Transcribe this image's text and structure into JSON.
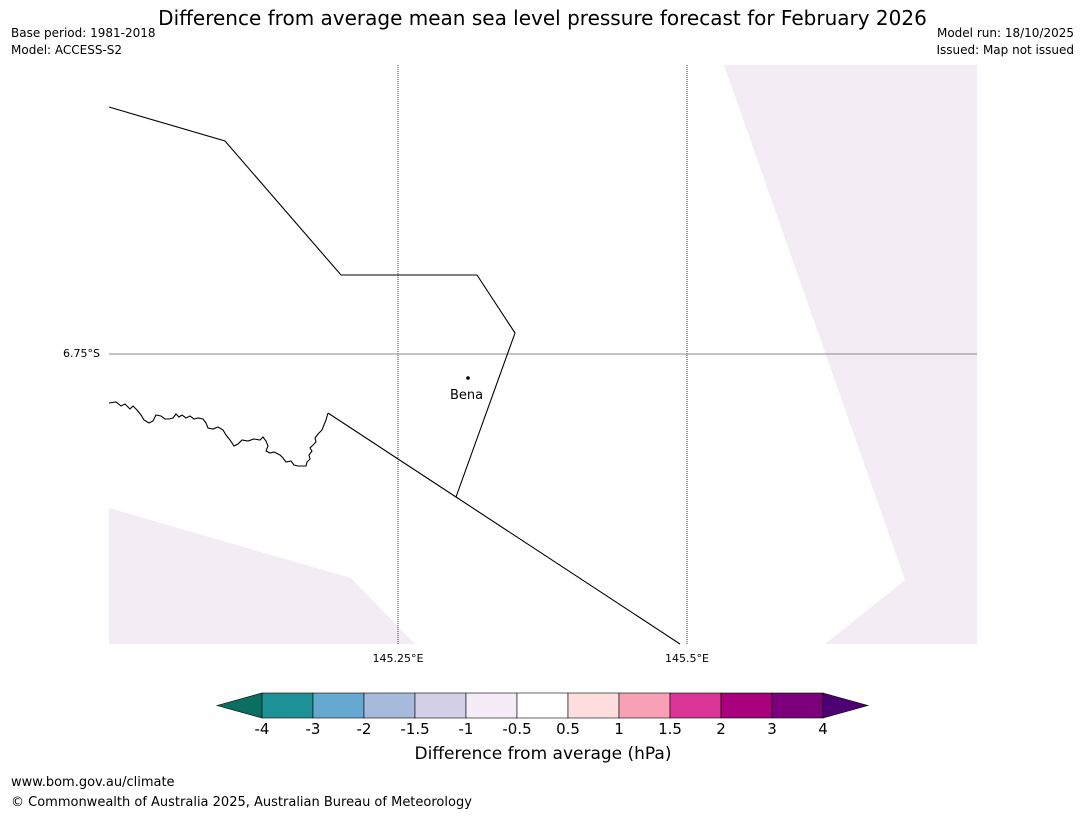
{
  "header": {
    "base_period": "Base period: 1981-2018",
    "model": "Model: ACCESS-S2",
    "title": "Difference from average mean sea level pressure forecast for February 2026",
    "model_run": "Model run: 18/10/2025",
    "issued": "Issued: Map not issued"
  },
  "map": {
    "lat_label": "6.75°S",
    "lon_labels": [
      "145.25°E",
      "145.5°E"
    ],
    "place_name": "Bena",
    "colors": {
      "land_fill": "#ffffff",
      "shaded_fill": "#f4ecf5",
      "boundary": "#000000",
      "gridline": "#888888"
    }
  },
  "colorbar": {
    "ticks": [
      "-4",
      "-3",
      "-2",
      "-1.5",
      "-1",
      "-0.5",
      "0.5",
      "1",
      "1.5",
      "2",
      "3",
      "4"
    ],
    "colors": [
      "#0a6e60",
      "#1d9196",
      "#66a9d0",
      "#a6bbdc",
      "#d2cfe6",
      "#f5ecf7",
      "#ffffff",
      "#fdddde",
      "#f8a0b6",
      "#db3597",
      "#a9007d",
      "#7c007b",
      "#4c0073"
    ],
    "label": "Difference from average (hPa)"
  },
  "footer": {
    "url": "www.bom.gov.au/climate",
    "copyright": "© Commonwealth of Australia 2025, Australian Bureau of Meteorology"
  }
}
